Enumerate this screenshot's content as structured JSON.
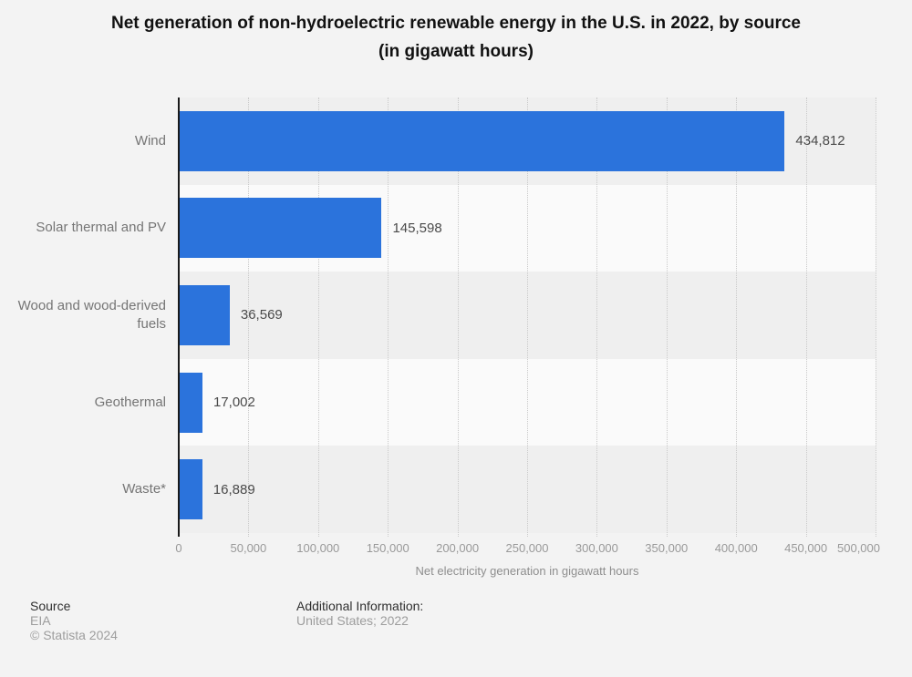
{
  "title": {
    "line1": "Net generation of non-hydroelectric renewable energy in the U.S. in 2022, by source",
    "line2": "(in gigawatt hours)"
  },
  "chart_data": {
    "type": "bar",
    "orientation": "horizontal",
    "title": "Net generation of non-hydroelectric renewable energy in the U.S. in 2022, by source (in gigawatt hours)",
    "categories": [
      "Wind",
      "Solar thermal and PV",
      "Wood and wood-derived fuels",
      "Geothermal",
      "Waste*"
    ],
    "values": [
      434812,
      145598,
      36569,
      17002,
      16889
    ],
    "value_labels": [
      "434,812",
      "145,598",
      "36,569",
      "17,002",
      "16,889"
    ],
    "xlabel": "Net electricity generation in gigawatt hours",
    "xlim": [
      0,
      500000
    ],
    "xticks": [
      0,
      50000,
      100000,
      150000,
      200000,
      250000,
      300000,
      350000,
      400000,
      450000,
      500000
    ],
    "xtick_labels": [
      "0",
      "50,000",
      "100,000",
      "150,000",
      "200,000",
      "250,000",
      "300,000",
      "350,000",
      "400,000",
      "450,000",
      "500,000"
    ],
    "grid": true,
    "legend": "none",
    "bar_color": "#2b73dc",
    "stripe_colors": [
      "#efefef",
      "#fafafa"
    ]
  },
  "footer": {
    "source_label": "Source",
    "source_value": "EIA",
    "copyright": "© Statista 2024",
    "additional_label": "Additional Information:",
    "additional_value": "United States; 2022"
  }
}
